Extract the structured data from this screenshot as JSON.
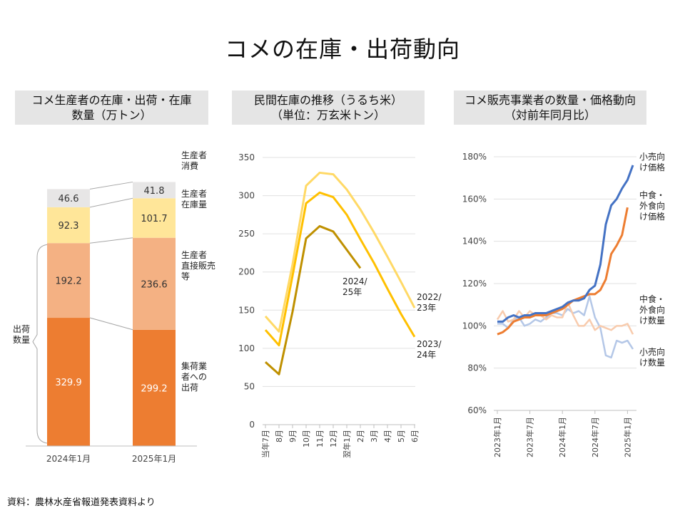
{
  "title": "コメの在庫・出荷動向",
  "source": "資料：農林水産省報道発表資料より",
  "panels": {
    "p1": {
      "line1": "コメ生産者の在庫・出荷・在庫",
      "line2": "数量（万トン）"
    },
    "p2": {
      "line1": "民間在庫の推移（うるち米）",
      "line2": "（単位：万玄米トン）"
    },
    "p3": {
      "line1": "コメ販売事業者の数量・価格動向",
      "line2": "（対前年同月比）"
    }
  },
  "chart_data": [
    {
      "type": "bar",
      "stacked": true,
      "categories": [
        "2024年1月",
        "2025年1月"
      ],
      "series": [
        {
          "name": "集荷業者への出荷",
          "values": [
            329.9,
            299.2
          ],
          "color": "#ed7d31"
        },
        {
          "name": "生産者直接販売等",
          "values": [
            192.2,
            236.6
          ],
          "color": "#f4b183"
        },
        {
          "name": "生産者在庫量",
          "values": [
            92.3,
            101.7
          ],
          "color": "#ffe699"
        },
        {
          "name": "生産者消費",
          "values": [
            46.6,
            41.8
          ],
          "color": "#e7e6e6"
        }
      ],
      "series_labels": [
        [
          "集荷業",
          "者への",
          "出荷"
        ],
        [
          "生産者",
          "直接販売",
          "等"
        ],
        [
          "生産者",
          "在庫量"
        ],
        [
          "生産者",
          "消費"
        ]
      ],
      "bracket_label": [
        "出荷",
        "数量"
      ]
    },
    {
      "type": "line",
      "x": [
        "当年7月",
        "8月",
        "9月",
        "10月",
        "11月",
        "12月",
        "翌年1月",
        "2月",
        "3月",
        "4月",
        "5月",
        "6月"
      ],
      "ylim": [
        0,
        350
      ],
      "yticks": [
        0,
        50,
        100,
        150,
        200,
        250,
        300,
        350
      ],
      "series": [
        {
          "name": "2022/23年",
          "label_lines": [
            "2022/",
            "23年"
          ],
          "color": "#ffd966",
          "values": [
            142,
            122,
            210,
            313,
            330,
            328,
            308,
            282,
            252,
            220,
            187,
            153
          ]
        },
        {
          "name": "2023/24年",
          "label_lines": [
            "2023/",
            "24年"
          ],
          "color": "#ffc000",
          "values": [
            124,
            104,
            195,
            290,
            304,
            298,
            275,
            243,
            212,
            178,
            145,
            115
          ]
        },
        {
          "name": "2024/25年",
          "label_lines": [
            "2024/",
            "25年"
          ],
          "color": "#bf9000",
          "values": [
            82,
            66,
            148,
            244,
            260,
            253,
            229,
            205,
            null,
            null,
            null,
            null
          ]
        }
      ]
    },
    {
      "type": "line",
      "x_tick_labels": [
        "2023年1月",
        "2023年7月",
        "2024年1月",
        "2024年7月",
        "2025年1月"
      ],
      "x_tick_months": [
        0,
        6,
        12,
        18,
        24
      ],
      "ylim": [
        60,
        180
      ],
      "yticks": [
        "60%",
        "80%",
        "100%",
        "120%",
        "140%",
        "160%",
        "180%"
      ],
      "series": [
        {
          "name": "小売向け価格",
          "label_lines": [
            "小売向",
            "け価格"
          ],
          "color": "#4472c4",
          "values": [
            102,
            102,
            104,
            105,
            104,
            105,
            105,
            106,
            106,
            106,
            107,
            108,
            109,
            111,
            112,
            112,
            113,
            117,
            119,
            129,
            148,
            157,
            160,
            165,
            169,
            176
          ]
        },
        {
          "name": "中食・外食向け価格",
          "label_lines": [
            "中食・",
            "外食向",
            "け価格"
          ],
          "color": "#ed7d31",
          "values": [
            96,
            97,
            99,
            102,
            103,
            104,
            104,
            105,
            105,
            105,
            106,
            107,
            108,
            110,
            112,
            113,
            114,
            115,
            115,
            117,
            122,
            134,
            138,
            143,
            156,
            null
          ]
        },
        {
          "name": "中食・外食向け数量",
          "label_lines": [
            "中食・",
            "外食向",
            "け数量"
          ],
          "color": "#f8cbad",
          "values": [
            103,
            107,
            102,
            103,
            107,
            104,
            107,
            105,
            105,
            103,
            105,
            104,
            104,
            111,
            105,
            100,
            100,
            103,
            98,
            100,
            99,
            98,
            100,
            100,
            101,
            96
          ]
        },
        {
          "name": "小売向け数量",
          "label_lines": [
            "小売向",
            "け数量"
          ],
          "color": "#b4c7e7",
          "values": [
            101,
            101,
            99,
            103,
            104,
            100,
            101,
            103,
            102,
            104,
            106,
            106,
            105,
            108,
            106,
            107,
            105,
            114,
            104,
            99,
            86,
            85,
            93,
            92,
            93,
            89
          ]
        }
      ]
    }
  ]
}
